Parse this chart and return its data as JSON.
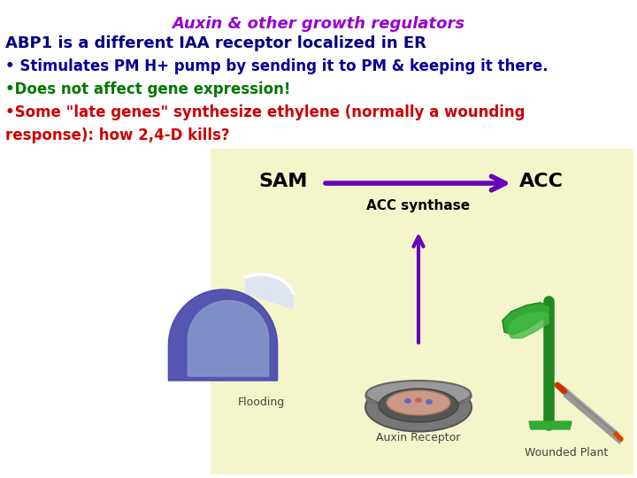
{
  "title": "Auxin & other growth regulators",
  "title_color": "#9900cc",
  "title_fontsize": 13,
  "line1": "ABP1 is a different IAA receptor localized in ER",
  "line1_color": "#000080",
  "line1_fontsize": 13,
  "line2": "• Stimulates PM H+ pump by sending it to PM & keeping it there.",
  "line2_color": "#000099",
  "line2_fontsize": 12,
  "line3": "•Does not affect gene expression!",
  "line3_color": "#007700",
  "line3_fontsize": 12,
  "line4a": "•Some \"late genes\" synthesize ethylene (normally a wounding",
  "line4b": "response): how 2,4-D kills?",
  "line4_color": "#cc0000",
  "line4_fontsize": 12,
  "bg_color": "#ffffff",
  "box_bg": "#f5f5cc",
  "sam_text": "SAM",
  "acc_text": "ACC",
  "acc_synthase_text": "ACC synthase",
  "flooding_text": "Flooding",
  "wounded_text": "Wounded Plant",
  "auxin_receptor_text": "Auxin Receptor",
  "arrow_color": "#6600bb"
}
